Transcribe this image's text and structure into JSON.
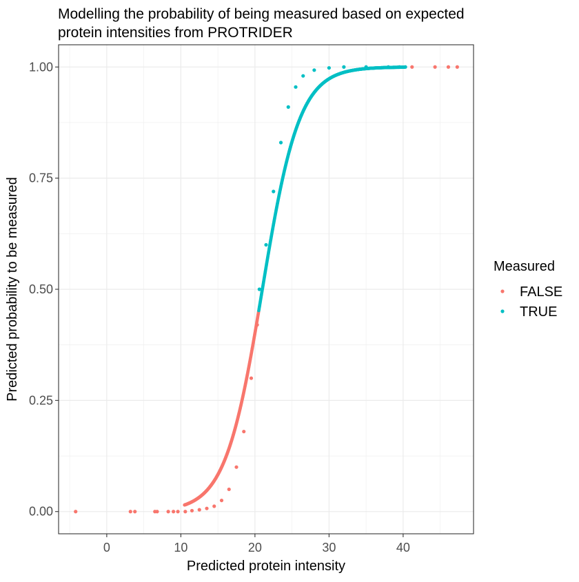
{
  "chart_data": {
    "type": "scatter",
    "title_lines": [
      "Modelling the probability of being measured based on expected",
      "protein intensities from PROTRIDER"
    ],
    "xlabel": "Predicted protein intensity",
    "ylabel": "Predicted probability to be measured",
    "xlim": [
      -6.5,
      49.5
    ],
    "ylim": [
      -0.05,
      1.05
    ],
    "x_ticks": [
      0,
      10,
      20,
      30,
      40
    ],
    "y_ticks": [
      0.0,
      0.25,
      0.5,
      0.75,
      1.0
    ],
    "y_tick_labels": [
      "0.00",
      "0.25",
      "0.50",
      "0.75",
      "1.00"
    ],
    "grid": true,
    "legend": {
      "title": "Measured",
      "position": "right",
      "entries": [
        {
          "label": "FALSE",
          "color": "#F8766D"
        },
        {
          "label": "TRUE",
          "color": "#00BFC4"
        }
      ]
    },
    "curve": {
      "shape": "logistic",
      "midpoint_x": 21,
      "measured_from_x": 20.5
    },
    "series": [
      {
        "name": "FALSE",
        "color": "#F8766D",
        "points": [
          [
            -4.2,
            0.0
          ],
          [
            3.2,
            0.0
          ],
          [
            3.8,
            0.0
          ],
          [
            6.5,
            0.0
          ],
          [
            6.8,
            0.0
          ],
          [
            8.3,
            0.0
          ],
          [
            9.0,
            0.0
          ],
          [
            9.6,
            0.0
          ],
          [
            10.6,
            0.0
          ],
          [
            11.5,
            0.002
          ],
          [
            12.5,
            0.004
          ],
          [
            13.5,
            0.007
          ],
          [
            14.5,
            0.012
          ],
          [
            15.5,
            0.025
          ],
          [
            16.5,
            0.05
          ],
          [
            17.5,
            0.1
          ],
          [
            18.5,
            0.18
          ],
          [
            19.5,
            0.3
          ],
          [
            20.3,
            0.42
          ],
          [
            41.2,
            1.0
          ],
          [
            44.3,
            1.0
          ],
          [
            46.1,
            1.0
          ],
          [
            47.3,
            1.0
          ]
        ]
      },
      {
        "name": "TRUE",
        "color": "#00BFC4",
        "points": [
          [
            20.6,
            0.5
          ],
          [
            21.5,
            0.6
          ],
          [
            22.5,
            0.72
          ],
          [
            23.5,
            0.83
          ],
          [
            24.5,
            0.91
          ],
          [
            25.5,
            0.955
          ],
          [
            26.5,
            0.98
          ],
          [
            28.0,
            0.993
          ],
          [
            30.0,
            0.998
          ],
          [
            32.0,
            1.0
          ],
          [
            35.0,
            1.0
          ],
          [
            38.0,
            1.0
          ],
          [
            39.5,
            1.0
          ],
          [
            40.3,
            1.0
          ]
        ]
      }
    ]
  }
}
